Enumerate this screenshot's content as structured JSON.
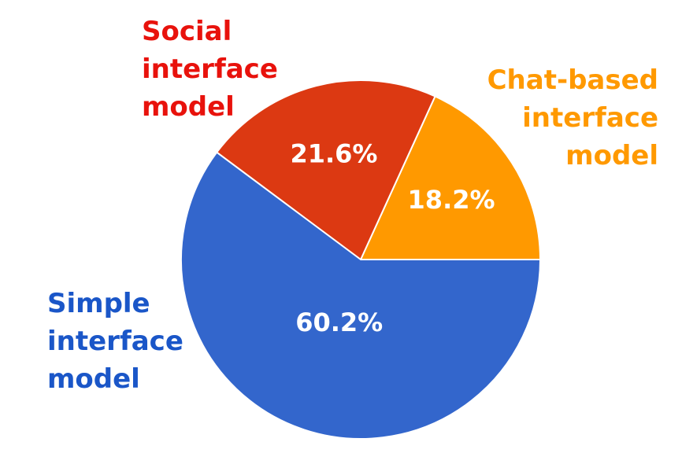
{
  "chart_data": {
    "type": "pie",
    "categories": [
      "Chat-based interface model",
      "Social interface model",
      "Simple interface model"
    ],
    "values": [
      18.2,
      21.6,
      60.2
    ],
    "value_labels": [
      "18.2%",
      "21.6%",
      "60.2%"
    ],
    "colors": [
      "#ff9900",
      "#dc3912",
      "#3366cc"
    ],
    "label_colors": [
      "#ff9900",
      "#e8120c",
      "#1a56c8"
    ]
  }
}
